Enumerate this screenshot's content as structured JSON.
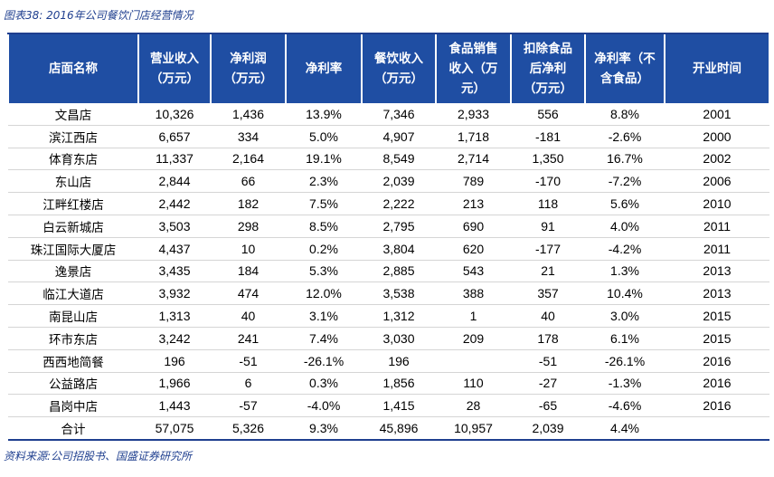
{
  "caption": "图表38:  2016年公司餐饮门店经营情况",
  "source": "资料来源:公司招股书、国盛证券研究所",
  "columns": [
    "店面名称",
    "营业收入\n（万元）",
    "净利润\n（万元）",
    "净利率",
    "餐饮收入\n（万元）",
    "食品销售\n收入（万\n元）",
    "扣除食品\n后净利\n（万元）",
    "净利率（不\n含食品）",
    "开业时间"
  ],
  "rows": [
    [
      "文昌店",
      "10,326",
      "1,436",
      "13.9%",
      "7,346",
      "2,933",
      "556",
      "8.8%",
      "2001"
    ],
    [
      "滨江西店",
      "6,657",
      "334",
      "5.0%",
      "4,907",
      "1,718",
      "-181",
      "-2.6%",
      "2000"
    ],
    [
      "体育东店",
      "11,337",
      "2,164",
      "19.1%",
      "8,549",
      "2,714",
      "1,350",
      "16.7%",
      "2002"
    ],
    [
      "东山店",
      "2,844",
      "66",
      "2.3%",
      "2,039",
      "789",
      "-170",
      "-7.2%",
      "2006"
    ],
    [
      "江畔红楼店",
      "2,442",
      "182",
      "7.5%",
      "2,222",
      "213",
      "118",
      "5.6%",
      "2010"
    ],
    [
      "白云新城店",
      "3,503",
      "298",
      "8.5%",
      "2,795",
      "690",
      "91",
      "4.0%",
      "2011"
    ],
    [
      "珠江国际大厦店",
      "4,437",
      "10",
      "0.2%",
      "3,804",
      "620",
      "-177",
      "-4.2%",
      "2011"
    ],
    [
      "逸景店",
      "3,435",
      "184",
      "5.3%",
      "2,885",
      "543",
      "21",
      "1.3%",
      "2013"
    ],
    [
      "临江大道店",
      "3,932",
      "474",
      "12.0%",
      "3,538",
      "388",
      "357",
      "10.4%",
      "2013"
    ],
    [
      "南昆山店",
      "1,313",
      "40",
      "3.1%",
      "1,312",
      "1",
      "40",
      "3.0%",
      "2015"
    ],
    [
      "环市东店",
      "3,242",
      "241",
      "7.4%",
      "3,030",
      "209",
      "178",
      "6.1%",
      "2015"
    ],
    [
      "西西地简餐",
      "196",
      "-51",
      "-26.1%",
      "196",
      "",
      "-51",
      "-26.1%",
      "2016"
    ],
    [
      "公益路店",
      "1,966",
      "6",
      "0.3%",
      "1,856",
      "110",
      "-27",
      "-1.3%",
      "2016"
    ],
    [
      "昌岗中店",
      "1,443",
      "-57",
      "-4.0%",
      "1,415",
      "28",
      "-65",
      "-4.6%",
      "2016"
    ],
    [
      "合计",
      "57,075",
      "5,326",
      "9.3%",
      "45,896",
      "10,957",
      "2,039",
      "4.4%",
      ""
    ]
  ]
}
